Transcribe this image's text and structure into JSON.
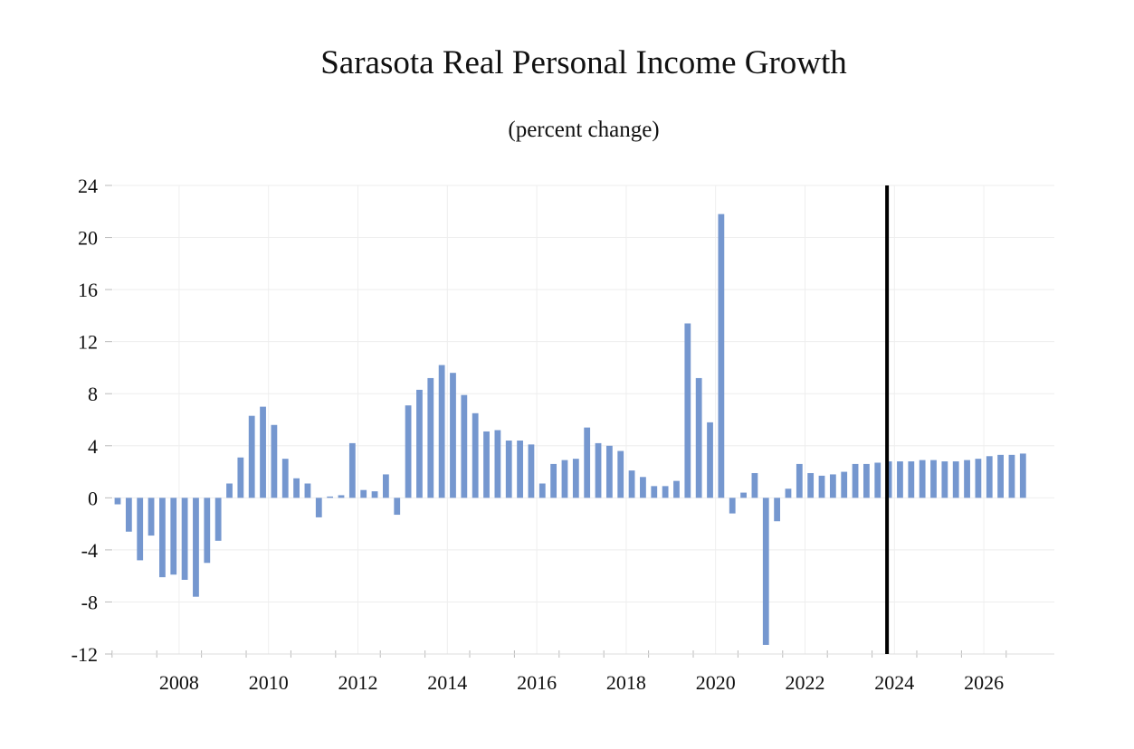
{
  "chart_data": {
    "type": "bar",
    "title": "Sarasota Real Personal Income Growth",
    "subtitle": "(percent change)",
    "xlabel": "",
    "ylabel": "",
    "ylim": [
      -12,
      24
    ],
    "yticks": [
      24,
      20,
      16,
      12,
      8,
      4,
      0,
      -4,
      -8,
      -12
    ],
    "ytick_labels": [
      "24",
      "20",
      "16",
      "12",
      "8",
      "4",
      "0",
      "-4",
      "-8",
      "-12"
    ],
    "xticks": [
      "2008",
      "2010",
      "2012",
      "2014",
      "2016",
      "2018",
      "2020",
      "2022",
      "2024",
      "2026"
    ],
    "xlim": [
      2007.0,
      2027.75
    ],
    "grid": true,
    "bar_color": "#7597cf",
    "forecast_line": {
      "x": 2024.25,
      "color": "#000000"
    },
    "series": [
      {
        "x": [
          2007.0,
          2007.25,
          2007.5,
          2007.75,
          2008.0,
          2008.25,
          2008.5,
          2008.75,
          2009.0,
          2009.25,
          2009.5,
          2009.75,
          2010.0,
          2010.25,
          2010.5,
          2010.75,
          2011.0,
          2011.25,
          2011.5,
          2011.75,
          2012.0,
          2012.25,
          2012.5,
          2012.75,
          2013.0,
          2013.25,
          2013.5,
          2013.75,
          2014.0,
          2014.25,
          2014.5,
          2014.75,
          2015.0,
          2015.25,
          2015.5,
          2015.75,
          2016.0,
          2016.25,
          2016.5,
          2016.75,
          2017.0,
          2017.25,
          2017.5,
          2017.75,
          2018.0,
          2018.25,
          2018.5,
          2018.75,
          2019.0,
          2019.25,
          2019.5,
          2019.75,
          2020.0,
          2020.25,
          2020.5,
          2020.75,
          2021.0,
          2021.25,
          2021.5,
          2021.75,
          2022.0,
          2022.25,
          2022.5,
          2022.75,
          2023.0,
          2023.25,
          2023.5,
          2023.75,
          2024.0,
          2024.25,
          2024.5,
          2024.75,
          2025.0,
          2025.25,
          2025.5,
          2025.75,
          2026.0,
          2026.25,
          2026.5,
          2026.75,
          2027.0,
          2027.25
        ],
        "values": [
          -0.5,
          -2.6,
          -4.8,
          -2.9,
          -6.1,
          -5.9,
          -6.3,
          -7.6,
          -5.0,
          -3.3,
          1.1,
          3.1,
          6.3,
          7.0,
          5.6,
          3.0,
          1.5,
          1.1,
          -1.5,
          0.1,
          0.2,
          4.2,
          0.6,
          0.5,
          1.8,
          -1.3,
          7.1,
          8.3,
          9.2,
          10.2,
          9.6,
          7.9,
          6.5,
          5.1,
          5.2,
          4.4,
          4.4,
          4.1,
          1.1,
          2.6,
          2.9,
          3.0,
          5.4,
          4.2,
          4.0,
          3.6,
          2.1,
          1.6,
          0.9,
          0.9,
          1.3,
          13.4,
          9.2,
          5.8,
          21.8,
          -1.2,
          0.4,
          1.9,
          -11.3,
          -1.8,
          0.7,
          2.6,
          1.9,
          1.7,
          1.8,
          2.0,
          2.6,
          2.6,
          2.7,
          2.8,
          2.8,
          2.8,
          2.9,
          2.9,
          2.8,
          2.8,
          2.9,
          3.0,
          3.2,
          3.3,
          3.3,
          3.4
        ]
      }
    ]
  }
}
